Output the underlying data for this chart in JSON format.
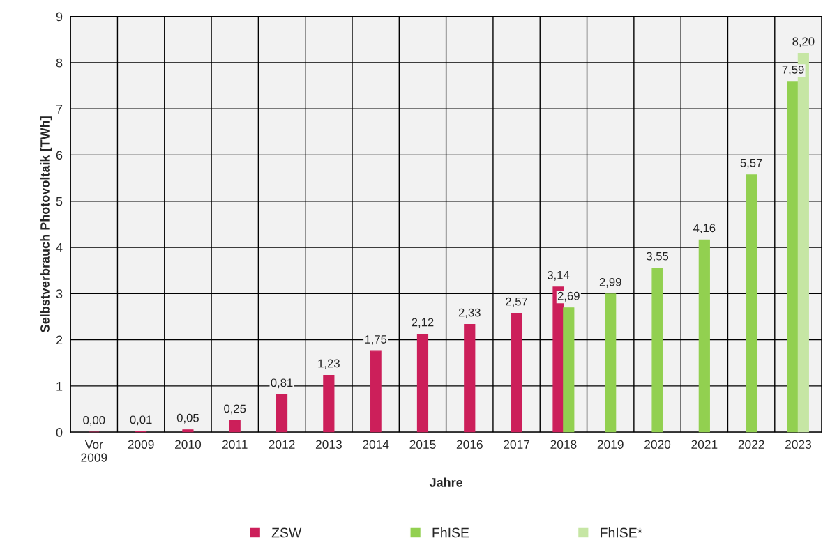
{
  "chart_data": {
    "type": "bar",
    "xlabel": "Jahre",
    "ylabel": "Selbstverbrauch Photovoltaik [TWh]",
    "categories": [
      "Vor\n2009",
      "2009",
      "2010",
      "2011",
      "2012",
      "2013",
      "2014",
      "2015",
      "2016",
      "2017",
      "2018",
      "2019",
      "2020",
      "2021",
      "2022",
      "2023"
    ],
    "series": [
      {
        "name": "ZSW",
        "color": "#cc1f5a",
        "values": [
          0.0,
          0.01,
          0.05,
          0.25,
          0.81,
          1.23,
          1.75,
          2.12,
          2.33,
          2.57,
          3.14,
          null,
          null,
          null,
          null,
          null
        ],
        "value_labels": [
          "0,00",
          "0,01",
          "0,05",
          "0,25",
          "0,81",
          "1,23",
          "1,75",
          "2,12",
          "2,33",
          "2,57",
          "3,14",
          null,
          null,
          null,
          null,
          null
        ]
      },
      {
        "name": "FhISE",
        "color": "#92d050",
        "values": [
          null,
          null,
          null,
          null,
          null,
          null,
          null,
          null,
          null,
          null,
          2.69,
          2.99,
          3.55,
          4.16,
          5.57,
          7.59
        ],
        "value_labels": [
          null,
          null,
          null,
          null,
          null,
          null,
          null,
          null,
          null,
          null,
          "2,69",
          "2,99",
          "3,55",
          "4,16",
          "5,57",
          "7,59"
        ]
      },
      {
        "name": "FhISE*",
        "color": "#c6e6a4",
        "values": [
          null,
          null,
          null,
          null,
          null,
          null,
          null,
          null,
          null,
          null,
          null,
          null,
          null,
          null,
          null,
          8.2
        ],
        "value_labels": [
          null,
          null,
          null,
          null,
          null,
          null,
          null,
          null,
          null,
          null,
          null,
          null,
          null,
          null,
          null,
          "8,20"
        ]
      }
    ],
    "ylim": [
      0,
      9
    ],
    "yticks": [
      0,
      1,
      2,
      3,
      4,
      5,
      6,
      7,
      8,
      9
    ],
    "grid": true,
    "legend": "bottom"
  }
}
